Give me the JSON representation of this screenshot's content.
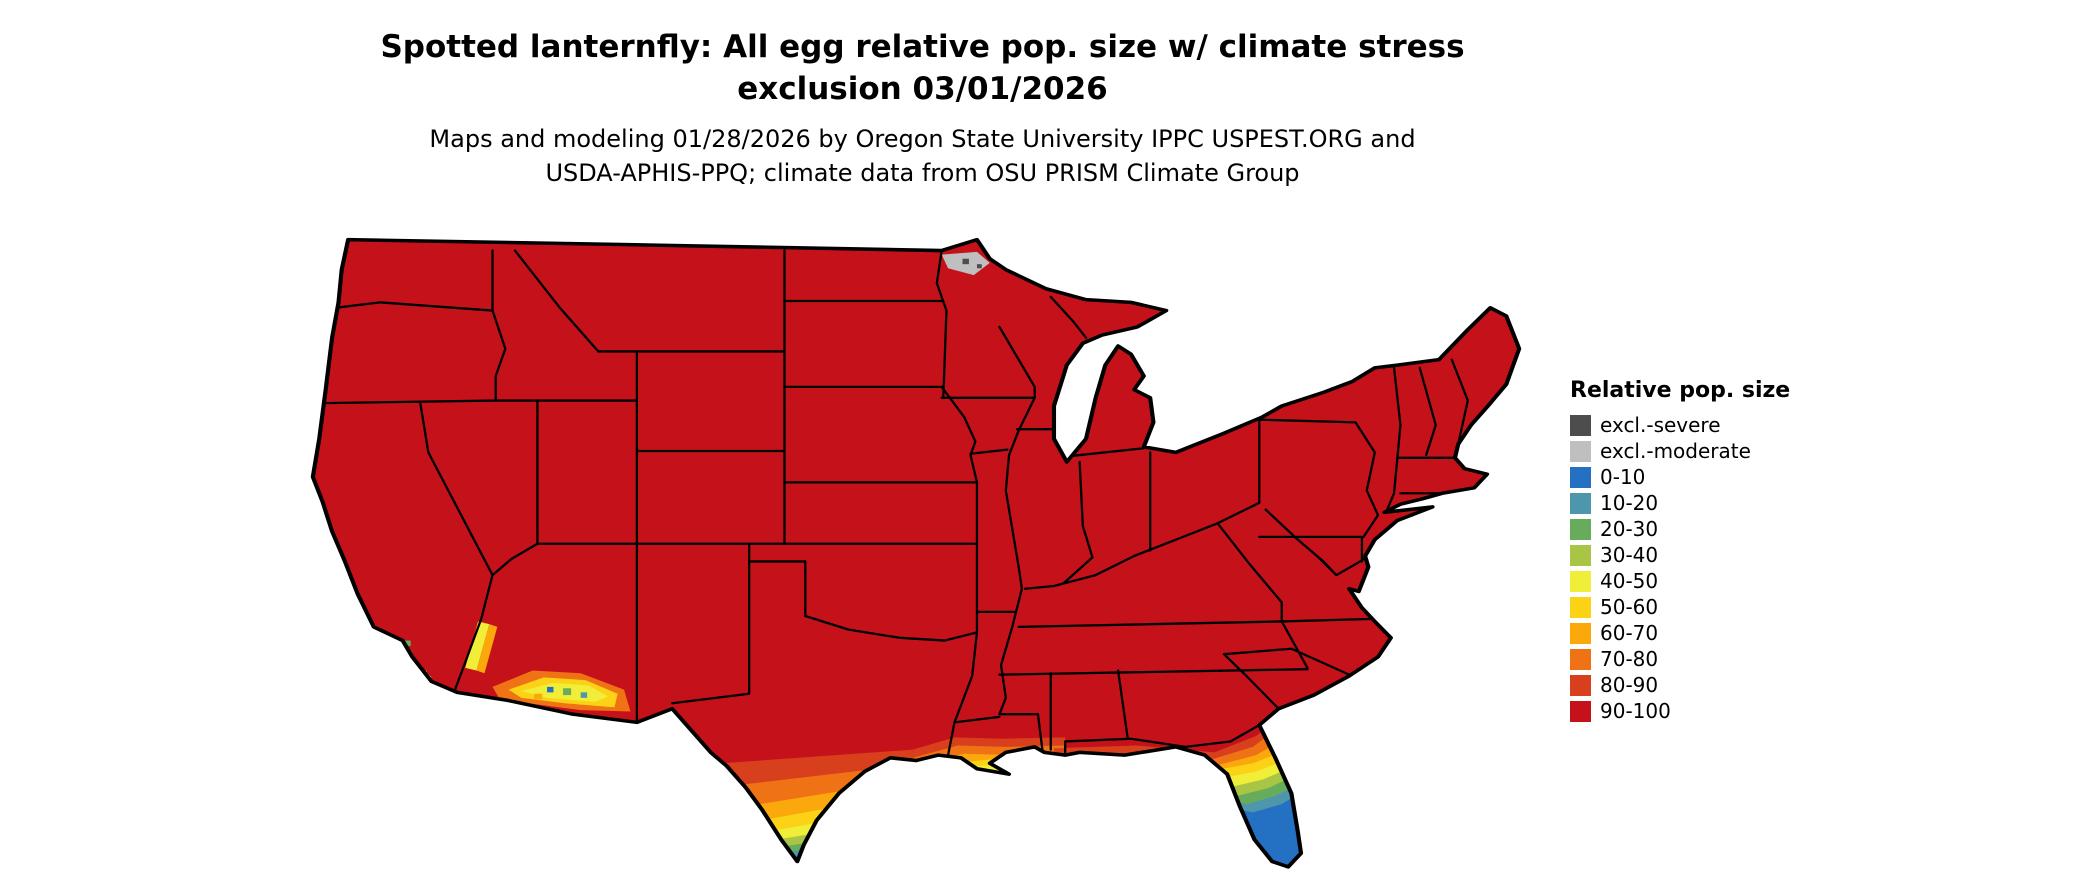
{
  "title": {
    "line1": "Spotted lanternfly: All egg relative pop. size w/ climate stress",
    "line2": "exclusion 03/01/2026"
  },
  "subtitle": {
    "line1": "Maps and modeling 01/28/2026 by Oregon State University IPPC USPEST.ORG and",
    "line2": "USDA-APHIS-PPQ; climate data from OSU PRISM Climate Group"
  },
  "legend": {
    "title": "Relative pop. size",
    "items": [
      {
        "label": "excl.-severe",
        "color": "#4d4d4d"
      },
      {
        "label": "excl.-moderate",
        "color": "#bfbfbf"
      },
      {
        "label": "0-10",
        "color": "#2470c2"
      },
      {
        "label": "10-20",
        "color": "#4d96ac"
      },
      {
        "label": "20-30",
        "color": "#67ac5b"
      },
      {
        "label": "30-40",
        "color": "#a9c545"
      },
      {
        "label": "40-50",
        "color": "#f0ee38"
      },
      {
        "label": "50-60",
        "color": "#fbd216"
      },
      {
        "label": "60-70",
        "color": "#fba80d"
      },
      {
        "label": "70-80",
        "color": "#ef7215"
      },
      {
        "label": "80-90",
        "color": "#d8401d"
      },
      {
        "label": "90-100",
        "color": "#c5121a"
      }
    ]
  },
  "map": {
    "region": "Conterminous United States",
    "base_class": "90-100",
    "outline_color": "#000000",
    "background_color": "#ffffff"
  }
}
